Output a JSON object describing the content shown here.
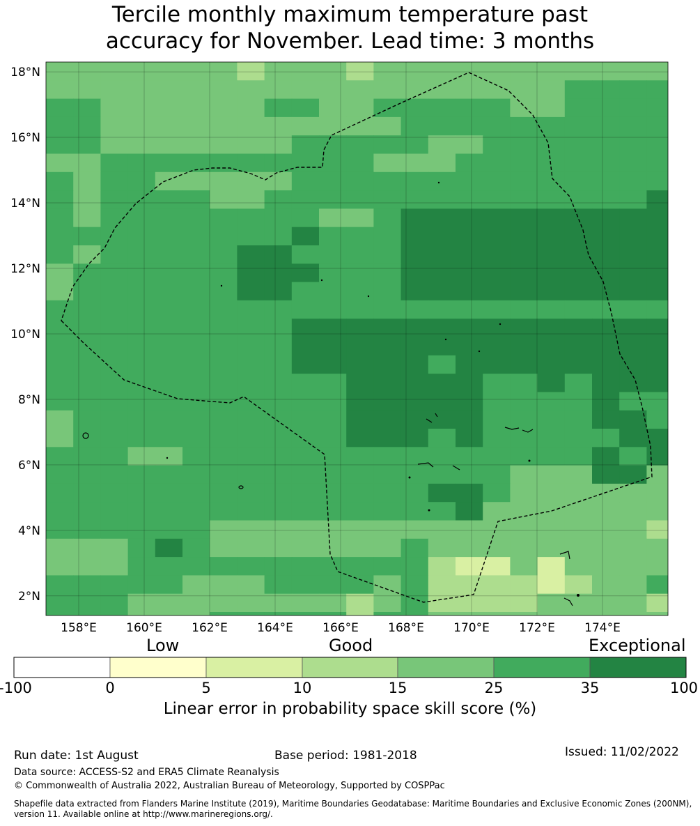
{
  "title": {
    "line1": "Tercile monthly maximum temperature past",
    "line2": "accuracy for November. Lead time: 3 months"
  },
  "map": {
    "lon_ticks": [
      "158°E",
      "160°E",
      "162°E",
      "164°E",
      "166°E",
      "168°E",
      "170°E",
      "172°E",
      "174°E"
    ],
    "lat_ticks": [
      "18°N",
      "16°N",
      "14°N",
      "12°N",
      "10°N",
      "8°N",
      "6°N",
      "4°N",
      "2°N"
    ],
    "lon_range": [
      157.0,
      176.0
    ],
    "lat_range": [
      1.4,
      18.3
    ]
  },
  "colorbar": {
    "category_labels": [
      "Low",
      "Good",
      "Exceptional"
    ],
    "tick_labels": [
      "-100",
      "0",
      "5",
      "10",
      "15",
      "25",
      "35",
      "100"
    ],
    "colors": [
      "#ffffff",
      "#ffffcc",
      "#d9f0a3",
      "#addd8e",
      "#78c679",
      "#41ab5d",
      "#238443"
    ],
    "label": "Linear error in probability space skill score (%)"
  },
  "footer": {
    "run_date": "Run date: 1st August",
    "base_period": "Base period: 1981-2018",
    "issued": "Issued: 11/02/2022",
    "data_source": "Data source: ACCESS-S2 and ERA5 Climate Reanalysis",
    "copyright": "© Commonwealth of Australia 2022, Australian Bureau of Meteorology, Supported by COSPPac",
    "shapefile_line1": "Shapefile data extracted from Flanders Marine Institute (2019), Maritime Boundaries Geodatabase: Maritime Boundaries and Exclusive Economic Zones (200NM),",
    "shapefile_line2": "version 11. Available online at http://www.marineregions.org/."
  }
}
